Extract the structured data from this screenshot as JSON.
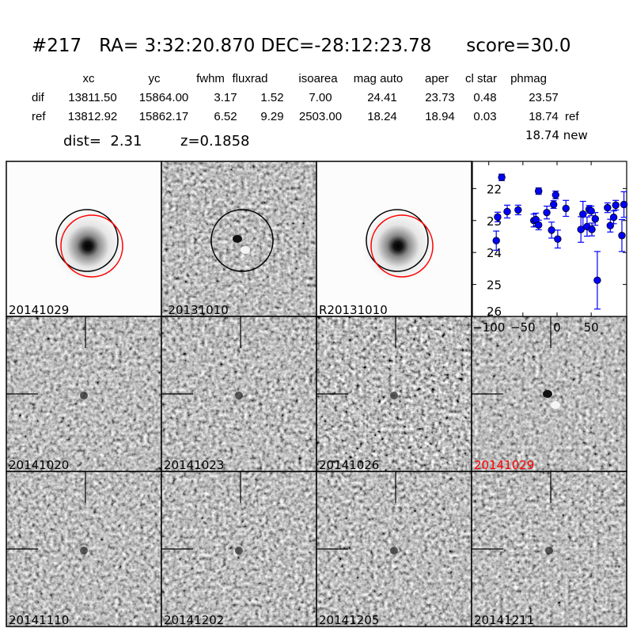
{
  "header": {
    "title": "#217   RA= 3:32:20.870 DEC=-28:12:23.78      score=30.0",
    "columns": [
      "xc",
      "yc",
      "fwhm",
      "fluxrad",
      "isoarea",
      "mag auto",
      "aper",
      "cl star",
      "phmag"
    ],
    "rows": [
      {
        "label": "dif",
        "values": [
          "13811.50",
          "15864.00",
          "3.17",
          "1.52",
          "7.00",
          "24.41",
          "23.73",
          "0.48",
          "23.57"
        ],
        "suffix": ""
      },
      {
        "label": "ref",
        "values": [
          "13812.92",
          "15862.17",
          "6.52",
          "9.29",
          "2503.00",
          "18.24",
          "18.94",
          "0.03",
          "18.74"
        ],
        "suffix": "ref"
      }
    ],
    "dist": "dist=  2.31",
    "z": "z=0.1858",
    "new_mag": "18.74 new"
  },
  "stamps": [
    {
      "label": "20141029",
      "type": "star",
      "label_color": "#000000"
    },
    {
      "label": "-20131010",
      "type": "diff",
      "label_color": "#000000"
    },
    {
      "label": "R20131010",
      "type": "star",
      "label_color": "#000000"
    },
    {
      "label": "20141020",
      "type": "noise",
      "label_color": "#000000"
    },
    {
      "label": "20141023",
      "type": "noise",
      "label_color": "#000000"
    },
    {
      "label": "20141026",
      "type": "noise",
      "label_color": "#000000"
    },
    {
      "label": "20141029",
      "type": "diffcross",
      "label_color": "#ff0000"
    },
    {
      "label": "20141110",
      "type": "noise",
      "label_color": "#000000"
    },
    {
      "label": "20141202",
      "type": "noise",
      "label_color": "#000000"
    },
    {
      "label": "20141205",
      "type": "noise",
      "label_color": "#000000"
    },
    {
      "label": "20141211",
      "type": "noise",
      "label_color": "#000000"
    }
  ],
  "chart_data": {
    "type": "scatter",
    "title": "",
    "xlabel": "",
    "ylabel": "",
    "xlim": [
      -124,
      102
    ],
    "ylim": [
      26,
      21.15
    ],
    "y_inverted": true,
    "xticks": [
      -100,
      -50,
      0,
      50
    ],
    "yticks": [
      22,
      23,
      24,
      25,
      26
    ],
    "marker_color": "#0000ff",
    "grid": false,
    "points": [
      {
        "x": -89,
        "y": 23.63,
        "err": 0.3
      },
      {
        "x": -87,
        "y": 22.89,
        "err": 0.15
      },
      {
        "x": -81,
        "y": 21.65,
        "err": 0.1
      },
      {
        "x": -73,
        "y": 22.72,
        "err": 0.2
      },
      {
        "x": -57,
        "y": 22.67,
        "err": 0.15
      },
      {
        "x": -34,
        "y": 23.0,
        "err": 0.2
      },
      {
        "x": -31,
        "y": 22.97,
        "err": 0.2
      },
      {
        "x": -27,
        "y": 23.14,
        "err": 0.15
      },
      {
        "x": -27,
        "y": 22.08,
        "err": 0.1
      },
      {
        "x": -15,
        "y": 22.75,
        "err": 0.2
      },
      {
        "x": -8,
        "y": 23.3,
        "err": 0.25
      },
      {
        "x": -5,
        "y": 22.5,
        "err": 0.12
      },
      {
        "x": -2,
        "y": 22.2,
        "err": 0.12
      },
      {
        "x": 1,
        "y": 23.58,
        "err": 0.28
      },
      {
        "x": 13,
        "y": 22.62,
        "err": 0.25
      },
      {
        "x": 35,
        "y": 23.28,
        "err": 0.4
      },
      {
        "x": 38,
        "y": 22.8,
        "err": 0.4
      },
      {
        "x": 44,
        "y": 23.19,
        "err": 0.3
      },
      {
        "x": 47,
        "y": 22.65,
        "err": 0.12
      },
      {
        "x": 50,
        "y": 22.7,
        "err": 0.15
      },
      {
        "x": 51,
        "y": 23.28,
        "err": 0.2
      },
      {
        "x": 56,
        "y": 22.95,
        "err": 0.2
      },
      {
        "x": 59,
        "y": 24.87,
        "err": 0.9
      },
      {
        "x": 74,
        "y": 22.6,
        "err": 0.15
      },
      {
        "x": 78,
        "y": 23.16,
        "err": 0.2
      },
      {
        "x": 83,
        "y": 22.9,
        "err": 0.2
      },
      {
        "x": 86,
        "y": 22.52,
        "err": 0.15
      },
      {
        "x": 95,
        "y": 23.47,
        "err": 0.5
      },
      {
        "x": 98,
        "y": 22.5,
        "err": 0.4
      }
    ]
  }
}
